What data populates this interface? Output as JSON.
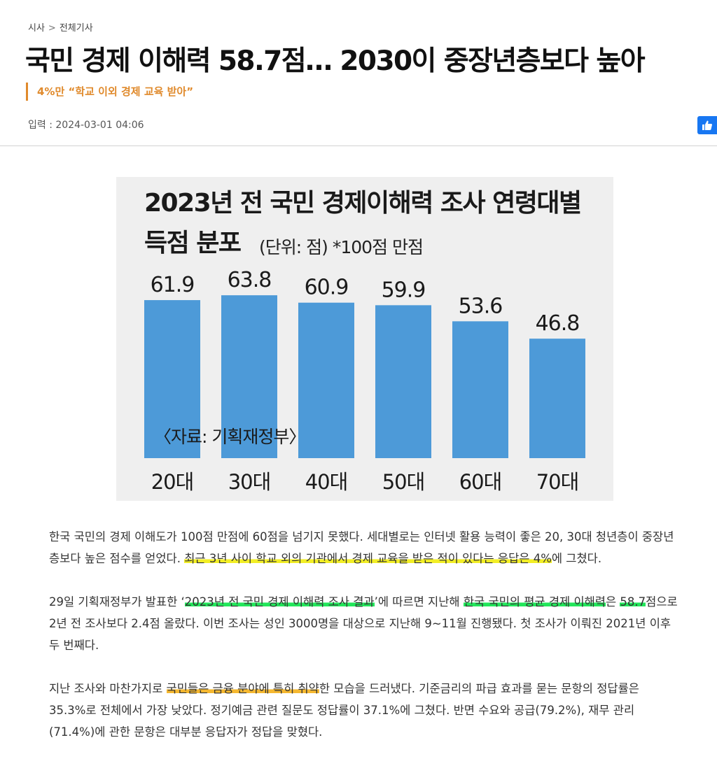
{
  "breadcrumb": {
    "section": "시사",
    "separator": ">",
    "subsection": "전체기사"
  },
  "headline": "국민 경제 이해력 58.7점… 2030이 중장년층보다 높아",
  "subheadline": "4%만 “학교 이외 경제 교육 받아”",
  "dateline": "입력 : 2024-03-01 04:06",
  "like_button": {
    "icon": "thumbs-up-icon",
    "color": "#1877f2"
  },
  "chart_data": {
    "type": "bar",
    "title_line1": "2023년 전 국민 경제이해력 조사 연령대별",
    "title_line2": "득점 분포",
    "unit_note": "(단위: 점) *100점 만점",
    "source": "〈자료: 기획재정부〉",
    "categories": [
      "20대",
      "30대",
      "40대",
      "50대",
      "60대",
      "70대"
    ],
    "values": [
      61.9,
      63.8,
      60.9,
      59.9,
      53.6,
      46.8
    ],
    "value_labels": [
      "61.9",
      "63.8",
      "60.9",
      "59.9",
      "53.6",
      "46.8"
    ],
    "bar_color": "#4d9ad8",
    "background": "#efefef"
  },
  "article": {
    "p1": [
      {
        "text": "한국 국민의 경제 이해도가 100점 만점에 60점을 넘기지 못했다. 세대별로는 인터넷 활용 능력이 좋은 20, 30대 청년층이 중장년층보다 높은 점수를 얻었다. "
      },
      {
        "text": "최근 3년 사이 학교 외의 기관에서 경제 교육을 받은 적이 있다는 응답은 4%",
        "hl": "y"
      },
      {
        "text": "에 그쳤다."
      }
    ],
    "p2": [
      {
        "text": "29일 기획재정부가 발표한 ‘"
      },
      {
        "text": "2023년 전 국민 경제 이해력 조사 결과",
        "hl": "g"
      },
      {
        "text": "’에 따르면 지난해 "
      },
      {
        "text": "한국 국민의 평균 경제 이해력",
        "hl": "g"
      },
      {
        "text": "은 "
      },
      {
        "text": "58.7",
        "hl": "g"
      },
      {
        "text": "점으로 2년 전 조사보다 2.4점 올랐다. 이번 조사는 성인 3000명을 대상으로 지난해 9~11월 진행됐다. 첫 조사가 이뤄진 2021년 이후 두 번째다."
      }
    ],
    "p3": [
      {
        "text": "지난 조사와 마찬가지로 "
      },
      {
        "text": "국민들은 금융 분야에 특히 취약",
        "hl": "o"
      },
      {
        "text": "한 모습을 드러냈다. 기준금리의 파급 효과를 묻는 문항의 정답률은 35.3%로 전체에서 가장 낮았다. 정기예금 관련 질문도 정답률이 37.1%에 그쳤다. 반면 수요와 공급(79.2%), 재무 관리(71.4%)에 관한 문항은 대부분 응답자가 정답을 맞혔다."
      }
    ]
  }
}
